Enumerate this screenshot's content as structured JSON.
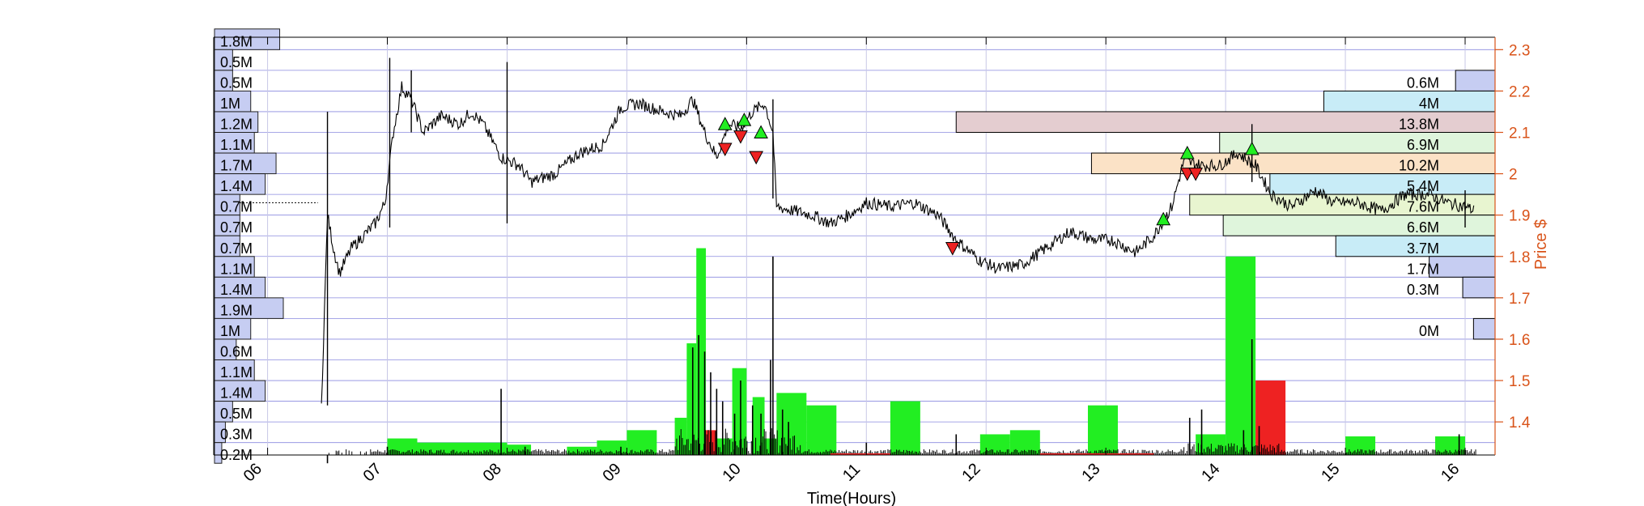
{
  "chart_data": {
    "type": "candlestick",
    "xlabel": "Time(Hours)",
    "ylabel": "Price $",
    "xlim": [
      5.55,
      16.25
    ],
    "ylim": [
      1.32,
      2.33
    ],
    "x_ticks": [
      6,
      7,
      8,
      9,
      10,
      11,
      12,
      13,
      14,
      15,
      16
    ],
    "x_tick_labels": [
      "06",
      "07",
      "08",
      "09",
      "10",
      "11",
      "12",
      "13",
      "14",
      "15",
      "16"
    ],
    "y_ticks": [
      1.4,
      1.5,
      1.6,
      1.7,
      1.8,
      1.9,
      2,
      2.1,
      2.2,
      2.3
    ],
    "y_tick_labels": [
      "1.4",
      "1.5",
      "1.6",
      "1.7",
      "1.8",
      "1.9",
      "2",
      "2.1",
      "2.2",
      "2.3"
    ],
    "colors": {
      "axis_right": "#D95319",
      "grid": "#c8c8e6",
      "profile_band": "#5a5ad2",
      "profile_fill": "#c6cdf2",
      "up": "#22ee22",
      "down": "#ee2222",
      "price": "#000000"
    },
    "price_line": [
      [
        6.45,
        1.44
      ],
      [
        6.5,
        1.9
      ],
      [
        6.55,
        1.82
      ],
      [
        6.6,
        1.76
      ],
      [
        6.7,
        1.82
      ],
      [
        6.8,
        1.85
      ],
      [
        6.9,
        1.88
      ],
      [
        6.98,
        1.93
      ],
      [
        7.05,
        2.1
      ],
      [
        7.12,
        2.21
      ],
      [
        7.2,
        2.18
      ],
      [
        7.3,
        2.1
      ],
      [
        7.45,
        2.14
      ],
      [
        7.6,
        2.12
      ],
      [
        7.7,
        2.15
      ],
      [
        7.8,
        2.12
      ],
      [
        7.95,
        2.04
      ],
      [
        8.1,
        2.02
      ],
      [
        8.2,
        1.98
      ],
      [
        8.4,
        2.0
      ],
      [
        8.6,
        2.05
      ],
      [
        8.8,
        2.07
      ],
      [
        8.95,
        2.16
      ],
      [
        9.1,
        2.17
      ],
      [
        9.3,
        2.15
      ],
      [
        9.45,
        2.14
      ],
      [
        9.55,
        2.18
      ],
      [
        9.65,
        2.1
      ],
      [
        9.75,
        2.04
      ],
      [
        9.85,
        2.12
      ],
      [
        9.95,
        2.11
      ],
      [
        10.05,
        2.15
      ],
      [
        10.15,
        2.17
      ],
      [
        10.22,
        2.1
      ],
      [
        10.25,
        1.92
      ],
      [
        10.4,
        1.91
      ],
      [
        10.55,
        1.9
      ],
      [
        10.7,
        1.88
      ],
      [
        10.85,
        1.9
      ],
      [
        11.0,
        1.93
      ],
      [
        11.2,
        1.92
      ],
      [
        11.4,
        1.93
      ],
      [
        11.6,
        1.9
      ],
      [
        11.75,
        1.84
      ],
      [
        11.95,
        1.79
      ],
      [
        12.1,
        1.77
      ],
      [
        12.3,
        1.78
      ],
      [
        12.5,
        1.82
      ],
      [
        12.7,
        1.86
      ],
      [
        12.9,
        1.84
      ],
      [
        13.05,
        1.84
      ],
      [
        13.25,
        1.81
      ],
      [
        13.4,
        1.85
      ],
      [
        13.55,
        1.92
      ],
      [
        13.65,
        2.03
      ],
      [
        13.8,
        2.02
      ],
      [
        13.95,
        2.02
      ],
      [
        14.1,
        2.05
      ],
      [
        14.25,
        2.02
      ],
      [
        14.38,
        1.95
      ],
      [
        14.55,
        1.92
      ],
      [
        14.75,
        1.96
      ],
      [
        14.9,
        1.93
      ],
      [
        15.1,
        1.93
      ],
      [
        15.3,
        1.91
      ],
      [
        15.5,
        1.95
      ],
      [
        15.7,
        1.95
      ],
      [
        15.85,
        1.93
      ],
      [
        16.0,
        1.92
      ],
      [
        16.08,
        1.91
      ]
    ],
    "price_spikes": [
      [
        6.5,
        1.44,
        2.15
      ],
      [
        7.02,
        1.87,
        2.28
      ],
      [
        7.2,
        2.1,
        2.25
      ],
      [
        8.0,
        1.88,
        2.27
      ],
      [
        10.22,
        1.94,
        2.18
      ],
      [
        14.22,
        1.98,
        2.12
      ],
      [
        16.0,
        1.87,
        1.96
      ]
    ],
    "buy_markers": [
      [
        9.82,
        2.12
      ],
      [
        9.98,
        2.13
      ],
      [
        10.12,
        2.1
      ],
      [
        13.48,
        1.89
      ],
      [
        13.68,
        2.05
      ],
      [
        14.22,
        2.06
      ]
    ],
    "sell_markers": [
      [
        9.82,
        2.06
      ],
      [
        9.95,
        2.09
      ],
      [
        10.08,
        2.04
      ],
      [
        11.72,
        1.82
      ],
      [
        13.68,
        2.0
      ],
      [
        13.75,
        2.0
      ]
    ],
    "left_profile": [
      {
        "price": 2.325,
        "volume": 1.8,
        "label": "1.8M"
      },
      {
        "price": 2.275,
        "volume": 0.5,
        "label": "0.5M"
      },
      {
        "price": 2.225,
        "volume": 0.5,
        "label": "0.5M"
      },
      {
        "price": 2.175,
        "volume": 1.0,
        "label": "1M"
      },
      {
        "price": 2.125,
        "volume": 1.2,
        "label": "1.2M"
      },
      {
        "price": 2.075,
        "volume": 1.1,
        "label": "1.1M"
      },
      {
        "price": 2.025,
        "volume": 1.7,
        "label": "1.7M"
      },
      {
        "price": 1.975,
        "volume": 1.4,
        "label": "1.4M"
      },
      {
        "price": 1.925,
        "volume": 0.7,
        "label": "0.7M"
      },
      {
        "price": 1.875,
        "volume": 0.7,
        "label": "0.7M"
      },
      {
        "price": 1.825,
        "volume": 0.7,
        "label": "0.7M"
      },
      {
        "price": 1.775,
        "volume": 1.1,
        "label": "1.1M"
      },
      {
        "price": 1.725,
        "volume": 1.4,
        "label": "1.4M"
      },
      {
        "price": 1.675,
        "volume": 1.9,
        "label": "1.9M"
      },
      {
        "price": 1.625,
        "volume": 1.0,
        "label": "1M"
      },
      {
        "price": 1.575,
        "volume": 0.6,
        "label": "0.6M"
      },
      {
        "price": 1.525,
        "volume": 1.1,
        "label": "1.1M"
      },
      {
        "price": 1.475,
        "volume": 1.4,
        "label": "1.4M"
      },
      {
        "price": 1.425,
        "volume": 0.5,
        "label": "0.5M"
      },
      {
        "price": 1.375,
        "volume": 0.3,
        "label": "0.3M"
      },
      {
        "price": 1.325,
        "volume": 0.2,
        "label": "0.2M"
      }
    ],
    "right_profile": [
      {
        "price": 2.225,
        "start_hour": 15.92,
        "label": "0.6M",
        "color": "#c6cdf2"
      },
      {
        "price": 2.175,
        "start_hour": 14.82,
        "label": "4M",
        "color": "#c8ecf7"
      },
      {
        "price": 2.125,
        "start_hour": 11.75,
        "label": "13.8M",
        "color": "#e4cdd0"
      },
      {
        "price": 2.075,
        "start_hour": 13.95,
        "label": "6.9M",
        "color": "#dff5dc"
      },
      {
        "price": 2.025,
        "start_hour": 12.88,
        "label": "10.2M",
        "color": "#fbe2c6"
      },
      {
        "price": 1.975,
        "start_hour": 14.37,
        "label": "5.4M",
        "color": "#c8ecf7"
      },
      {
        "price": 1.925,
        "start_hour": 13.7,
        "label": "7.6M",
        "color": "#e8f5d0"
      },
      {
        "price": 1.875,
        "start_hour": 13.98,
        "label": "6.6M",
        "color": "#dff5dc"
      },
      {
        "price": 1.825,
        "start_hour": 14.92,
        "label": "3.7M",
        "color": "#c8ecf7"
      },
      {
        "price": 1.775,
        "start_hour": 15.7,
        "label": "1.7M",
        "color": "#c6cdf2"
      },
      {
        "price": 1.725,
        "start_hour": 15.98,
        "label": "0.3M",
        "color": "#c6cdf2"
      },
      {
        "price": 1.625,
        "start_hour": 16.07,
        "label": "0M",
        "color": "#c6cdf2"
      }
    ],
    "hourly_volume_bars": [
      {
        "x0": 7.0,
        "x1": 7.25,
        "top": 1.36,
        "color": "#22ee22"
      },
      {
        "x0": 7.25,
        "x1": 8.0,
        "top": 1.35,
        "color": "#22ee22"
      },
      {
        "x0": 8.0,
        "x1": 8.2,
        "top": 1.345,
        "color": "#22ee22"
      },
      {
        "x0": 8.5,
        "x1": 8.75,
        "top": 1.34,
        "color": "#22ee22"
      },
      {
        "x0": 8.75,
        "x1": 9.0,
        "top": 1.355,
        "color": "#22ee22"
      },
      {
        "x0": 9.0,
        "x1": 9.25,
        "top": 1.38,
        "color": "#22ee22"
      },
      {
        "x0": 9.4,
        "x1": 9.5,
        "top": 1.41,
        "color": "#22ee22"
      },
      {
        "x0": 9.5,
        "x1": 9.58,
        "top": 1.59,
        "color": "#22ee22"
      },
      {
        "x0": 9.58,
        "x1": 9.66,
        "top": 1.82,
        "color": "#22ee22"
      },
      {
        "x0": 9.66,
        "x1": 9.75,
        "top": 1.38,
        "color": "#ee2222"
      },
      {
        "x0": 9.75,
        "x1": 9.88,
        "top": 1.36,
        "color": "#22ee22"
      },
      {
        "x0": 9.88,
        "x1": 10.0,
        "top": 1.53,
        "color": "#22ee22"
      },
      {
        "x0": 10.05,
        "x1": 10.15,
        "top": 1.46,
        "color": "#22ee22"
      },
      {
        "x0": 10.15,
        "x1": 10.25,
        "top": 1.36,
        "color": "#22ee22"
      },
      {
        "x0": 10.25,
        "x1": 10.5,
        "top": 1.47,
        "color": "#22ee22"
      },
      {
        "x0": 10.5,
        "x1": 10.75,
        "top": 1.44,
        "color": "#22ee22"
      },
      {
        "x0": 11.2,
        "x1": 11.45,
        "top": 1.45,
        "color": "#22ee22"
      },
      {
        "x0": 11.95,
        "x1": 12.2,
        "top": 1.37,
        "color": "#22ee22"
      },
      {
        "x0": 12.2,
        "x1": 12.45,
        "top": 1.38,
        "color": "#22ee22"
      },
      {
        "x0": 12.85,
        "x1": 13.1,
        "top": 1.44,
        "color": "#22ee22"
      },
      {
        "x0": 13.75,
        "x1": 14.0,
        "top": 1.37,
        "color": "#22ee22"
      },
      {
        "x0": 14.0,
        "x1": 14.25,
        "top": 1.8,
        "color": "#22ee22"
      },
      {
        "x0": 14.25,
        "x1": 14.5,
        "top": 1.5,
        "color": "#ee2222"
      },
      {
        "x0": 15.0,
        "x1": 15.25,
        "top": 1.365,
        "color": "#22ee22"
      },
      {
        "x0": 15.75,
        "x1": 16.0,
        "top": 1.365,
        "color": "#22ee22"
      }
    ],
    "volume_spikes": [
      [
        6.5,
        1.3
      ],
      [
        7.0,
        1.34
      ],
      [
        7.95,
        1.48
      ],
      [
        8.15,
        1.34
      ],
      [
        8.95,
        1.34
      ],
      [
        9.55,
        1.58
      ],
      [
        9.6,
        1.61
      ],
      [
        9.65,
        1.57
      ],
      [
        9.7,
        1.52
      ],
      [
        9.75,
        1.48
      ],
      [
        9.8,
        1.45
      ],
      [
        9.9,
        1.42
      ],
      [
        9.95,
        1.5
      ],
      [
        10.05,
        1.44
      ],
      [
        10.12,
        1.42
      ],
      [
        10.2,
        1.55
      ],
      [
        10.22,
        1.8
      ],
      [
        10.3,
        1.43
      ],
      [
        10.35,
        1.4
      ],
      [
        11.0,
        1.35
      ],
      [
        11.75,
        1.37
      ],
      [
        13.7,
        1.41
      ],
      [
        13.8,
        1.43
      ],
      [
        14.15,
        1.38
      ],
      [
        14.22,
        1.6
      ],
      [
        14.28,
        1.39
      ],
      [
        15.95,
        1.37
      ]
    ]
  }
}
